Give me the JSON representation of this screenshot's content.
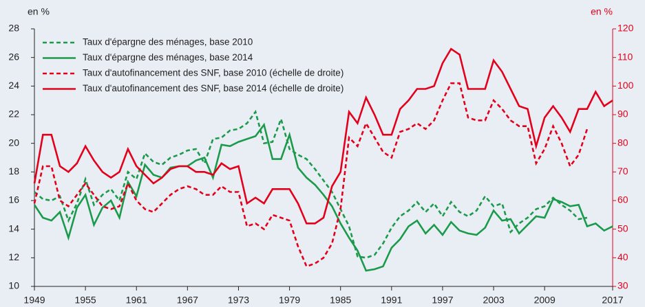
{
  "chart_data": {
    "type": "line",
    "y_label": "en %",
    "y2_label": "en %",
    "x": [
      1949,
      1950,
      1951,
      1952,
      1953,
      1954,
      1955,
      1956,
      1957,
      1958,
      1959,
      1960,
      1961,
      1962,
      1963,
      1964,
      1965,
      1966,
      1967,
      1968,
      1969,
      1970,
      1971,
      1972,
      1973,
      1974,
      1975,
      1976,
      1977,
      1978,
      1979,
      1980,
      1981,
      1982,
      1983,
      1984,
      1985,
      1986,
      1987,
      1988,
      1989,
      1990,
      1991,
      1992,
      1993,
      1994,
      1995,
      1996,
      1997,
      1998,
      1999,
      2000,
      2001,
      2002,
      2003,
      2004,
      2005,
      2006,
      2007,
      2008,
      2009,
      2010,
      2011,
      2012,
      2013,
      2014,
      2015,
      2016,
      2017
    ],
    "series": [
      {
        "name": "Taux d'épargne des ménages, base 2010",
        "color": "#1a9a4a",
        "dash": true,
        "values": [
          16.6,
          16.1,
          16.0,
          16.3,
          14.6,
          15.8,
          17.5,
          15.7,
          16.4,
          16.8,
          16.0,
          18.0,
          17.5,
          19.3,
          18.7,
          18.5,
          19.0,
          19.2,
          19.5,
          19.6,
          18.6,
          20.3,
          20.4,
          20.9,
          21.0,
          21.4,
          22.2,
          20.0,
          20.1,
          21.7,
          19.6,
          19.2,
          18.9,
          18.2,
          17.4,
          16.6,
          15.4,
          14.2,
          12.1,
          12.0,
          12.2,
          13.0,
          14.1,
          14.9,
          15.3,
          15.9,
          15.2,
          15.8,
          14.9,
          15.9,
          15.2,
          14.9,
          15.3,
          16.3,
          15.6,
          15.8,
          13.8,
          14.4,
          14.8,
          15.4,
          15.6,
          16.2,
          15.7,
          15.3,
          14.7,
          14.8,
          null,
          null,
          null
        ]
      },
      {
        "name": "Taux d'épargne des ménages, base 2014",
        "color": "#1a9a4a",
        "dash": false,
        "values": [
          15.7,
          14.8,
          14.6,
          15.2,
          13.4,
          15.5,
          16.4,
          14.3,
          15.5,
          16.0,
          14.8,
          17.3,
          16.3,
          18.5,
          17.8,
          17.6,
          18.3,
          18.4,
          18.4,
          18.8,
          19.0,
          17.6,
          19.9,
          19.8,
          20.1,
          20.3,
          20.5,
          21.3,
          18.9,
          18.9,
          20.6,
          18.3,
          17.6,
          17.1,
          16.4,
          15.6,
          14.4,
          13.4,
          12.5,
          11.1,
          11.2,
          11.4,
          12.7,
          13.3,
          14.2,
          14.6,
          13.7,
          14.3,
          13.6,
          14.5,
          13.9,
          13.7,
          13.6,
          14.1,
          15.3,
          14.6,
          14.7,
          13.7,
          14.3,
          14.9,
          14.8,
          16.1,
          15.9,
          15.6,
          15.7,
          14.2,
          14.4,
          13.9,
          14.2
        ]
      },
      {
        "name": "Taux d'autofinancement des SNF, base 2010 (échelle de droite)",
        "color": "#e3001b",
        "dash": true,
        "axis": "y2",
        "values": [
          59,
          72,
          72,
          60,
          58,
          62,
          66,
          62,
          58,
          57,
          58,
          66,
          60,
          57,
          56,
          59,
          62,
          64,
          65,
          64,
          62,
          62,
          65,
          63,
          63,
          51,
          52,
          50,
          55,
          54,
          53,
          44,
          37,
          38,
          40,
          45,
          57,
          82,
          79,
          87,
          82,
          77,
          75,
          84,
          85,
          87,
          85,
          88,
          95,
          101,
          101,
          89,
          88,
          88,
          95,
          92,
          88,
          86,
          86,
          73,
          78,
          86,
          80,
          72,
          76,
          85,
          null,
          null,
          null
        ]
      },
      {
        "name": "Taux d'autofinancement des SNF, base 2014 (échelle de droite)",
        "color": "#e3001b",
        "dash": false,
        "axis": "y2",
        "values": [
          66,
          83,
          83,
          72,
          70,
          73,
          79,
          74,
          70,
          68,
          70,
          78,
          72,
          69,
          66,
          68,
          71,
          72,
          72,
          70,
          70,
          69,
          73,
          71,
          72,
          59,
          61,
          59,
          64,
          64,
          64,
          59,
          52,
          52,
          54,
          65,
          70,
          91,
          87,
          96,
          90,
          83,
          83,
          92,
          95,
          99,
          99,
          100,
          108,
          113,
          111,
          99,
          99,
          99,
          109,
          105,
          99,
          93,
          92,
          79,
          89,
          93,
          89,
          84,
          92,
          92,
          98,
          93,
          95
        ]
      }
    ],
    "xlim": [
      1949,
      2017
    ],
    "xticks": [
      1949,
      1955,
      1961,
      1967,
      1973,
      1979,
      1985,
      1991,
      1997,
      2003,
      2009,
      2017
    ],
    "ylim": [
      10,
      28
    ],
    "yticks": [
      10,
      12,
      14,
      16,
      18,
      20,
      22,
      24,
      26,
      28
    ],
    "y2lim": [
      30,
      120
    ],
    "y2ticks": [
      30,
      40,
      50,
      60,
      70,
      80,
      90,
      100,
      110,
      120
    ],
    "legend": "top-left",
    "y2_color": "#e3001b"
  }
}
